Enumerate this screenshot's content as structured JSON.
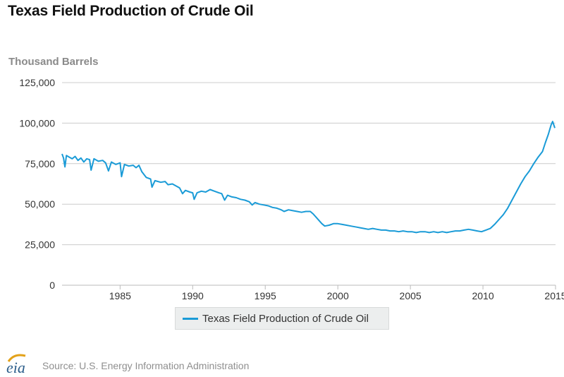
{
  "title": "Texas Field Production of Crude Oil",
  "y_axis_label": "Thousand Barrels",
  "source": "Source: U.S. Energy Information Administration",
  "logo_text": "eia",
  "colors": {
    "series": "#1a9bd7",
    "grid": "#cccccc",
    "axis_text": "#333333",
    "logo_gold": "#e3a21a",
    "logo_text": "#2b5d8a"
  },
  "chart_data": {
    "type": "line",
    "title": "Texas Field Production of Crude Oil",
    "ylabel": "Thousand Barrels",
    "xlabel": "",
    "xlim": [
      1981.0,
      2015.0
    ],
    "ylim": [
      0,
      125000
    ],
    "x_ticks": [
      1985,
      1990,
      1995,
      2000,
      2005,
      2010,
      2015
    ],
    "x_tick_labels": [
      "1985",
      "1990",
      "1995",
      "2000",
      "2005",
      "2010",
      "2015"
    ],
    "y_ticks": [
      0,
      25000,
      50000,
      75000,
      100000,
      125000
    ],
    "y_tick_labels": [
      "0",
      "25,000",
      "50,000",
      "75,000",
      "100,000",
      "125,000"
    ],
    "grid": true,
    "legend_position": "bottom-center",
    "series": [
      {
        "name": "Texas Field Production of Crude Oil",
        "color": "#1a9bd7",
        "points": [
          [
            1981.0,
            81000
          ],
          [
            1981.1,
            78500
          ],
          [
            1981.2,
            73000
          ],
          [
            1981.3,
            80000
          ],
          [
            1981.5,
            79000
          ],
          [
            1981.7,
            78000
          ],
          [
            1981.9,
            79500
          ],
          [
            1982.1,
            77000
          ],
          [
            1982.3,
            78500
          ],
          [
            1982.5,
            76000
          ],
          [
            1982.7,
            78000
          ],
          [
            1982.9,
            77500
          ],
          [
            1983.0,
            71000
          ],
          [
            1983.2,
            78000
          ],
          [
            1983.5,
            76500
          ],
          [
            1983.8,
            77000
          ],
          [
            1984.0,
            75500
          ],
          [
            1984.2,
            70500
          ],
          [
            1984.4,
            76000
          ],
          [
            1984.7,
            74500
          ],
          [
            1985.0,
            75500
          ],
          [
            1985.1,
            67000
          ],
          [
            1985.3,
            74500
          ],
          [
            1985.6,
            73500
          ],
          [
            1985.9,
            74000
          ],
          [
            1986.1,
            72500
          ],
          [
            1986.3,
            74000
          ],
          [
            1986.5,
            70000
          ],
          [
            1986.8,
            66500
          ],
          [
            1987.1,
            65500
          ],
          [
            1987.2,
            60500
          ],
          [
            1987.4,
            64500
          ],
          [
            1987.8,
            63500
          ],
          [
            1988.1,
            64000
          ],
          [
            1988.3,
            62000
          ],
          [
            1988.6,
            62500
          ],
          [
            1988.9,
            61000
          ],
          [
            1989.1,
            60000
          ],
          [
            1989.3,
            56500
          ],
          [
            1989.5,
            58500
          ],
          [
            1989.8,
            57500
          ],
          [
            1990.0,
            57000
          ],
          [
            1990.1,
            53000
          ],
          [
            1990.3,
            57000
          ],
          [
            1990.6,
            58000
          ],
          [
            1990.9,
            57500
          ],
          [
            1991.2,
            59000
          ],
          [
            1991.5,
            58000
          ],
          [
            1991.8,
            57000
          ],
          [
            1992.0,
            56500
          ],
          [
            1992.2,
            52500
          ],
          [
            1992.4,
            55500
          ],
          [
            1992.7,
            54500
          ],
          [
            1993.0,
            54000
          ],
          [
            1993.3,
            53000
          ],
          [
            1993.6,
            52500
          ],
          [
            1993.9,
            51500
          ],
          [
            1994.1,
            49500
          ],
          [
            1994.3,
            51000
          ],
          [
            1994.6,
            50000
          ],
          [
            1994.9,
            49500
          ],
          [
            1995.2,
            49000
          ],
          [
            1995.5,
            48000
          ],
          [
            1995.8,
            47500
          ],
          [
            1996.1,
            46500
          ],
          [
            1996.3,
            45500
          ],
          [
            1996.6,
            46500
          ],
          [
            1996.9,
            46000
          ],
          [
            1997.2,
            45500
          ],
          [
            1997.5,
            45000
          ],
          [
            1997.8,
            45500
          ],
          [
            1998.1,
            45500
          ],
          [
            1998.3,
            44000
          ],
          [
            1998.6,
            41000
          ],
          [
            1998.9,
            38000
          ],
          [
            1999.1,
            36500
          ],
          [
            1999.4,
            37000
          ],
          [
            1999.7,
            38000
          ],
          [
            2000.0,
            38000
          ],
          [
            2000.3,
            37500
          ],
          [
            2000.6,
            37000
          ],
          [
            2000.9,
            36500
          ],
          [
            2001.2,
            36000
          ],
          [
            2001.5,
            35500
          ],
          [
            2001.8,
            35000
          ],
          [
            2002.1,
            34500
          ],
          [
            2002.4,
            35000
          ],
          [
            2002.7,
            34500
          ],
          [
            2003.0,
            34000
          ],
          [
            2003.3,
            34000
          ],
          [
            2003.6,
            33500
          ],
          [
            2003.9,
            33500
          ],
          [
            2004.2,
            33000
          ],
          [
            2004.5,
            33500
          ],
          [
            2004.8,
            33000
          ],
          [
            2005.1,
            33000
          ],
          [
            2005.4,
            32500
          ],
          [
            2005.7,
            33000
          ],
          [
            2006.0,
            33000
          ],
          [
            2006.3,
            32500
          ],
          [
            2006.6,
            33000
          ],
          [
            2006.9,
            32500
          ],
          [
            2007.2,
            33000
          ],
          [
            2007.5,
            32500
          ],
          [
            2007.8,
            33000
          ],
          [
            2008.1,
            33500
          ],
          [
            2008.4,
            33500
          ],
          [
            2008.7,
            34000
          ],
          [
            2009.0,
            34500
          ],
          [
            2009.3,
            34000
          ],
          [
            2009.6,
            33500
          ],
          [
            2009.9,
            33000
          ],
          [
            2010.2,
            34000
          ],
          [
            2010.5,
            35000
          ],
          [
            2010.8,
            37500
          ],
          [
            2011.1,
            40500
          ],
          [
            2011.4,
            43500
          ],
          [
            2011.7,
            47500
          ],
          [
            2012.0,
            52500
          ],
          [
            2012.3,
            57500
          ],
          [
            2012.6,
            62500
          ],
          [
            2012.9,
            67000
          ],
          [
            2013.2,
            70500
          ],
          [
            2013.5,
            75000
          ],
          [
            2013.8,
            79000
          ],
          [
            2014.1,
            82500
          ],
          [
            2014.3,
            88000
          ],
          [
            2014.5,
            93000
          ],
          [
            2014.7,
            99000
          ],
          [
            2014.8,
            101000
          ],
          [
            2014.95,
            97000
          ]
        ]
      }
    ]
  }
}
